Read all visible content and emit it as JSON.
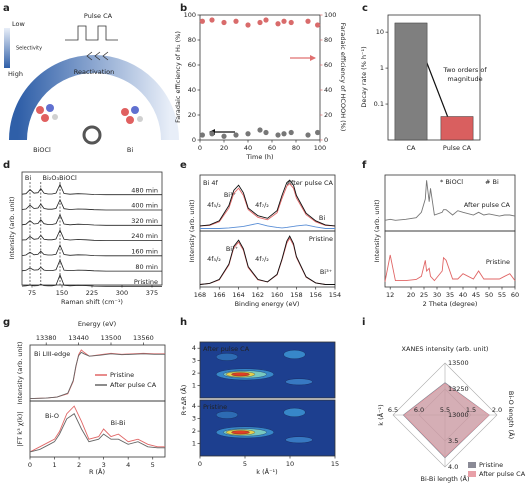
{
  "panel_labels": [
    "a",
    "b",
    "c",
    "d",
    "e",
    "f",
    "g",
    "h",
    "i"
  ],
  "schematic": {
    "pulse": "Pulse CA",
    "low": "Low",
    "selectivity": "Selectivity",
    "high": "High",
    "reactivation": "Reactivation",
    "left": "BiOCl",
    "right": "Bi"
  },
  "chart_data": [
    {
      "type": "scatter",
      "xlabel": "Time (h)",
      "ylabel": "Faradaic efficiency of H₂ (%)",
      "y2label": "Faradaic efficiency of HCOOH (%)",
      "xlim": [
        0,
        100
      ],
      "xticks": [
        0,
        20,
        40,
        60,
        80,
        100
      ],
      "ylim": [
        0,
        100
      ],
      "yticks": [
        0,
        20,
        40,
        60,
        80,
        100
      ],
      "y2lim": [
        0,
        100
      ],
      "y2ticks": [
        0,
        20,
        40,
        60,
        80,
        100
      ],
      "x": [
        2,
        10,
        20,
        30,
        40,
        50,
        55,
        65,
        70,
        76,
        90,
        98
      ],
      "series": [
        {
          "color": "#777777",
          "values": [
            4,
            5,
            3,
            4,
            5,
            8,
            6,
            4,
            5,
            6,
            4,
            6
          ]
        },
        {
          "color": "#d96b6b",
          "axis": "y2",
          "values": [
            95,
            96,
            94,
            95,
            92,
            94,
            96,
            93,
            95,
            94,
            95,
            92
          ]
        }
      ]
    },
    {
      "type": "bar",
      "ylabel": "Decay rate (% h⁻¹)",
      "log_y": true,
      "ylim": [
        0.01,
        30
      ],
      "yticks": [
        0.1,
        1,
        10
      ],
      "categories": [
        "CA",
        "Pulse CA"
      ],
      "values": [
        18,
        0.045
      ],
      "colors": [
        "#7f7f7f",
        "#d95f5f"
      ],
      "annotations": [
        "Two orders of",
        "magnitude"
      ]
    },
    {
      "type": "waterfall",
      "xlabel": "Raman shift (cm⁻¹)",
      "ylabel": "Intensity (arb. unit)",
      "xlim": [
        50,
        400
      ],
      "xticks": [
        75,
        150,
        225,
        300,
        375
      ],
      "ylim": [
        0,
        6
      ],
      "peaks": [
        {
          "label": "Bi",
          "position": 70
        },
        {
          "label": "Bi₂O₃",
          "position": 97
        },
        {
          "label": "BiOCl",
          "position": 145
        }
      ],
      "x": [
        50,
        60,
        70,
        80,
        90,
        97,
        105,
        115,
        125,
        135,
        145,
        155,
        170,
        190,
        210,
        230,
        260,
        290,
        320,
        350,
        380,
        400
      ],
      "series": [
        {
          "name": "480 min",
          "color": "#222222",
          "values": [
            1.2,
            1.4,
            3.0,
            1.6,
            1.8,
            3.4,
            1.6,
            1.3,
            1.3,
            1.6,
            5.0,
            1.5,
            1.2,
            1.4,
            1.3,
            1.1,
            1.0,
            1.0,
            1.0,
            1.0,
            1.0,
            1.0
          ]
        },
        {
          "name": "400 min",
          "color": "#222222",
          "values": [
            1.2,
            1.4,
            2.9,
            1.6,
            1.8,
            3.3,
            1.6,
            1.3,
            1.3,
            1.6,
            5.0,
            1.5,
            1.2,
            1.4,
            1.3,
            1.1,
            1.0,
            1.0,
            1.0,
            1.0,
            1.0,
            1.0
          ]
        },
        {
          "name": "320 min",
          "color": "#222222",
          "values": [
            1.2,
            1.4,
            2.8,
            1.5,
            1.7,
            3.2,
            1.6,
            1.3,
            1.3,
            1.6,
            5.1,
            1.5,
            1.2,
            1.4,
            1.3,
            1.1,
            1.0,
            1.0,
            1.0,
            1.0,
            1.0,
            1.0
          ]
        },
        {
          "name": "240 min",
          "color": "#222222",
          "values": [
            1.2,
            1.3,
            2.6,
            1.5,
            1.7,
            3.0,
            1.5,
            1.3,
            1.3,
            1.6,
            5.1,
            1.5,
            1.2,
            1.4,
            1.3,
            1.1,
            1.0,
            1.0,
            1.0,
            1.0,
            1.0,
            1.0
          ]
        },
        {
          "name": "160 min",
          "color": "#222222",
          "values": [
            1.1,
            1.3,
            2.4,
            1.4,
            1.6,
            2.8,
            1.5,
            1.3,
            1.3,
            1.6,
            5.2,
            1.5,
            1.2,
            1.4,
            1.3,
            1.1,
            1.0,
            1.0,
            1.0,
            1.0,
            1.0,
            1.0
          ]
        },
        {
          "name": "80 min",
          "color": "#222222",
          "values": [
            1.1,
            1.3,
            2.2,
            1.4,
            1.5,
            2.5,
            1.4,
            1.2,
            1.2,
            1.5,
            5.3,
            1.4,
            1.2,
            1.4,
            1.3,
            1.1,
            1.0,
            1.0,
            1.0,
            1.0,
            1.0,
            1.0
          ]
        },
        {
          "name": "Pristine",
          "color": "#222222",
          "values": [
            1.1,
            1.2,
            1.5,
            1.2,
            1.3,
            1.8,
            1.3,
            1.2,
            1.2,
            1.5,
            5.5,
            1.4,
            1.2,
            1.4,
            1.3,
            1.1,
            1.0,
            1.0,
            1.0,
            1.0,
            1.0,
            1.0
          ]
        }
      ]
    },
    {
      "type": "line",
      "ylabel": "Intensity (arb. unit)",
      "xlim": [
        168,
        154
      ],
      "ylim": [
        0,
        1.1
      ],
      "annotations": [
        "Bi 4f",
        "After pulse CA",
        "Bi³⁺",
        "4f₅/₂",
        "4f₇/₂",
        "Bi"
      ],
      "x": [
        168,
        167,
        166,
        165,
        164.5,
        164,
        163.5,
        163,
        162,
        161,
        160,
        159.5,
        159,
        158.7,
        158.3,
        158,
        157,
        156,
        155,
        154
      ],
      "series": [
        {
          "color": "#5b8fd6",
          "values": [
            0.05,
            0.05,
            0.05,
            0.06,
            0.07,
            0.08,
            0.09,
            0.11,
            0.15,
            0.1,
            0.07,
            0.06,
            0.07,
            0.08,
            0.09,
            0.1,
            0.12,
            0.08,
            0.05,
            0.05
          ]
        },
        {
          "color": "#e06666",
          "values": [
            0.1,
            0.11,
            0.18,
            0.45,
            0.74,
            0.84,
            0.7,
            0.42,
            0.27,
            0.22,
            0.36,
            0.64,
            0.88,
            0.93,
            0.84,
            0.65,
            0.32,
            0.18,
            0.11,
            0.1
          ]
        },
        {
          "color": "#111111",
          "values": [
            0.1,
            0.12,
            0.2,
            0.5,
            0.8,
            0.9,
            0.75,
            0.45,
            0.3,
            0.25,
            0.4,
            0.7,
            0.95,
            1.0,
            0.9,
            0.7,
            0.35,
            0.2,
            0.12,
            0.1
          ]
        }
      ]
    },
    {
      "type": "line",
      "xlabel": "Binding energy (eV)",
      "xlim": [
        168,
        154
      ],
      "xticks": [
        168,
        166,
        164,
        162,
        160,
        158,
        156,
        154
      ],
      "ylim": [
        0,
        1.1
      ],
      "annotations": [
        "Pristine",
        "Bi³⁺",
        "4f₅/₂",
        "4f₇/₂",
        "Bi³⁺"
      ],
      "x": [
        168,
        167,
        166,
        165,
        164.5,
        164,
        163.5,
        163,
        162,
        161,
        160,
        159.5,
        159,
        158.7,
        158.3,
        158,
        157,
        156,
        155,
        154
      ],
      "series": [
        {
          "color": "#e06666",
          "values": [
            0.05,
            0.07,
            0.14,
            0.43,
            0.77,
            0.88,
            0.72,
            0.38,
            0.14,
            0.1,
            0.24,
            0.53,
            0.86,
            0.96,
            0.82,
            0.58,
            0.19,
            0.08,
            0.05,
            0.05
          ]
        },
        {
          "color": "#111111",
          "values": [
            0.05,
            0.07,
            0.15,
            0.45,
            0.8,
            0.92,
            0.75,
            0.4,
            0.15,
            0.1,
            0.25,
            0.55,
            0.9,
            1.0,
            0.85,
            0.6,
            0.2,
            0.08,
            0.05,
            0.05
          ]
        }
      ]
    },
    {
      "type": "line",
      "ylabel": "Intensity (arb. unit)",
      "xlim": [
        10,
        60
      ],
      "ylim": [
        0,
        1.05
      ],
      "annotations": [
        "After pulse CA",
        "* BiOCl",
        "# Bi"
      ],
      "x": [
        10,
        12,
        14,
        18,
        22,
        24,
        25.5,
        26,
        27,
        27.5,
        29,
        32,
        32.5,
        33.5,
        36,
        38,
        40,
        44,
        46,
        48,
        50,
        54,
        56,
        58,
        60
      ],
      "series": [
        {
          "color": "#777777",
          "values": [
            0.2,
            0.22,
            0.2,
            0.22,
            0.25,
            0.35,
            0.6,
            0.95,
            0.55,
            0.8,
            0.3,
            0.35,
            0.4,
            0.4,
            0.3,
            0.38,
            0.35,
            0.3,
            0.35,
            0.3,
            0.32,
            0.28,
            0.3,
            0.3,
            0.28
          ]
        }
      ]
    },
    {
      "type": "line",
      "xlabel": "2 Theta (degree)",
      "xlim": [
        10,
        60
      ],
      "xticks": [
        12,
        20,
        25,
        30,
        35,
        40,
        45,
        50,
        55,
        60
      ],
      "ylim": [
        0,
        1.05
      ],
      "annotations": [
        "Pristine"
      ],
      "x": [
        10,
        12,
        14,
        18,
        22,
        24,
        25.5,
        26,
        27,
        27.5,
        29,
        32,
        32.5,
        33.5,
        36,
        38,
        40,
        44,
        46,
        48,
        50,
        54,
        56,
        58,
        60
      ],
      "series": [
        {
          "color": "#e06666",
          "values": [
            0.1,
            0.6,
            0.12,
            0.12,
            0.14,
            0.2,
            0.5,
            0.3,
            0.35,
            0.2,
            0.12,
            0.3,
            0.55,
            0.5,
            0.15,
            0.15,
            0.25,
            0.15,
            0.3,
            0.15,
            0.15,
            0.15,
            0.2,
            0.25,
            0.12
          ]
        }
      ]
    },
    {
      "type": "line",
      "xlabel": "Energy (eV)",
      "ylabel": "Intensity (arb. unit)",
      "xlim": [
        13350,
        13600
      ],
      "xticks": [
        13380,
        13440,
        13500,
        13560
      ],
      "ylim": [
        0,
        1.15
      ],
      "annotations": [
        "Bi LIII-edge"
      ],
      "x": [
        13350,
        13380,
        13400,
        13420,
        13430,
        13435,
        13440,
        13445,
        13450,
        13460,
        13480,
        13500,
        13520,
        13540,
        13560,
        13580,
        13600
      ],
      "series": [
        {
          "name": "Pristine",
          "color": "#e06666",
          "values": [
            0.05,
            0.06,
            0.08,
            0.15,
            0.4,
            0.7,
            0.95,
            1.05,
            1.0,
            0.92,
            0.95,
            0.98,
            0.96,
            0.97,
            0.98,
            0.97,
            0.97
          ]
        },
        {
          "name": "After pulse CA",
          "color": "#666666",
          "values": [
            0.05,
            0.06,
            0.08,
            0.16,
            0.42,
            0.72,
            0.93,
            1.0,
            0.97,
            0.92,
            0.94,
            0.97,
            0.95,
            0.96,
            0.97,
            0.96,
            0.96
          ]
        }
      ]
    },
    {
      "type": "line",
      "xlabel": "R (Å)",
      "ylabel": "|FT k³ χ(k)|",
      "xlim": [
        0,
        5.5
      ],
      "xticks": [
        0,
        1,
        2,
        3,
        4,
        5
      ],
      "ylim": [
        0,
        1.1
      ],
      "annotations": [
        "Bi-O",
        "Bi-Bi"
      ],
      "x": [
        0,
        0.4,
        0.8,
        1.0,
        1.2,
        1.5,
        1.8,
        2.1,
        2.4,
        2.8,
        3.0,
        3.3,
        3.6,
        4.0,
        4.4,
        4.8,
        5.2,
        5.5
      ],
      "series": [
        {
          "color": "#e06666",
          "values": [
            0.1,
            0.2,
            0.3,
            0.35,
            0.5,
            0.85,
            1.0,
            0.7,
            0.35,
            0.4,
            0.55,
            0.4,
            0.45,
            0.3,
            0.35,
            0.25,
            0.2,
            0.2
          ]
        },
        {
          "color": "#666666",
          "values": [
            0.1,
            0.15,
            0.25,
            0.3,
            0.45,
            0.75,
            0.85,
            0.55,
            0.3,
            0.35,
            0.45,
            0.35,
            0.35,
            0.25,
            0.3,
            0.2,
            0.18,
            0.18
          ]
        }
      ]
    },
    {
      "type": "contour",
      "ylabel": "R+ΔR (Å)",
      "xlim": [
        0,
        15
      ],
      "ylim": [
        0,
        4.5
      ],
      "yticks": [
        1,
        2,
        3,
        4
      ],
      "annotations": [
        "After pulse CA"
      ]
    },
    {
      "type": "contour",
      "xlabel": "k (Å⁻¹)",
      "xlim": [
        0,
        15
      ],
      "xticks": [
        0,
        5,
        10,
        15
      ],
      "ylim": [
        0,
        4.5
      ],
      "yticks": [
        1,
        2,
        3,
        4
      ],
      "annotations": [
        "Pristine"
      ]
    },
    {
      "type": "radar",
      "axes": [
        {
          "name": "XANES intensity (arb. unit)",
          "lim": [
            13000,
            13500
          ],
          "ticks": [
            13000,
            13250,
            13500
          ]
        },
        {
          "name": "Bi-O length (Å)",
          "lim": [
            1.0,
            2.0
          ],
          "ticks": [
            1.5,
            {
              "value": 2,
              "label": "2.0"
            }
          ]
        },
        {
          "name": "Bi-Bi length (Å)",
          "lim": [
            3.0,
            4.0
          ],
          "ticks": [
            3.5,
            {
              "value": 4,
              "label": "4.0"
            }
          ]
        },
        {
          "name": "k (Å⁻¹)",
          "lim": [
            5.5,
            6.5
          ],
          "ticks": [
            5.5,
            {
              "value": 6,
              "label": "6.0"
            },
            6.5
          ]
        }
      ],
      "series": [
        {
          "name": "Pristine",
          "color": "#8a8a96",
          "values": [
            13310,
            1.85,
            3.82,
            6.3
          ]
        },
        {
          "name": "After pulse CA",
          "color": "#e8a0a8",
          "values": [
            13300,
            1.84,
            3.8,
            6.28
          ]
        }
      ]
    }
  ]
}
